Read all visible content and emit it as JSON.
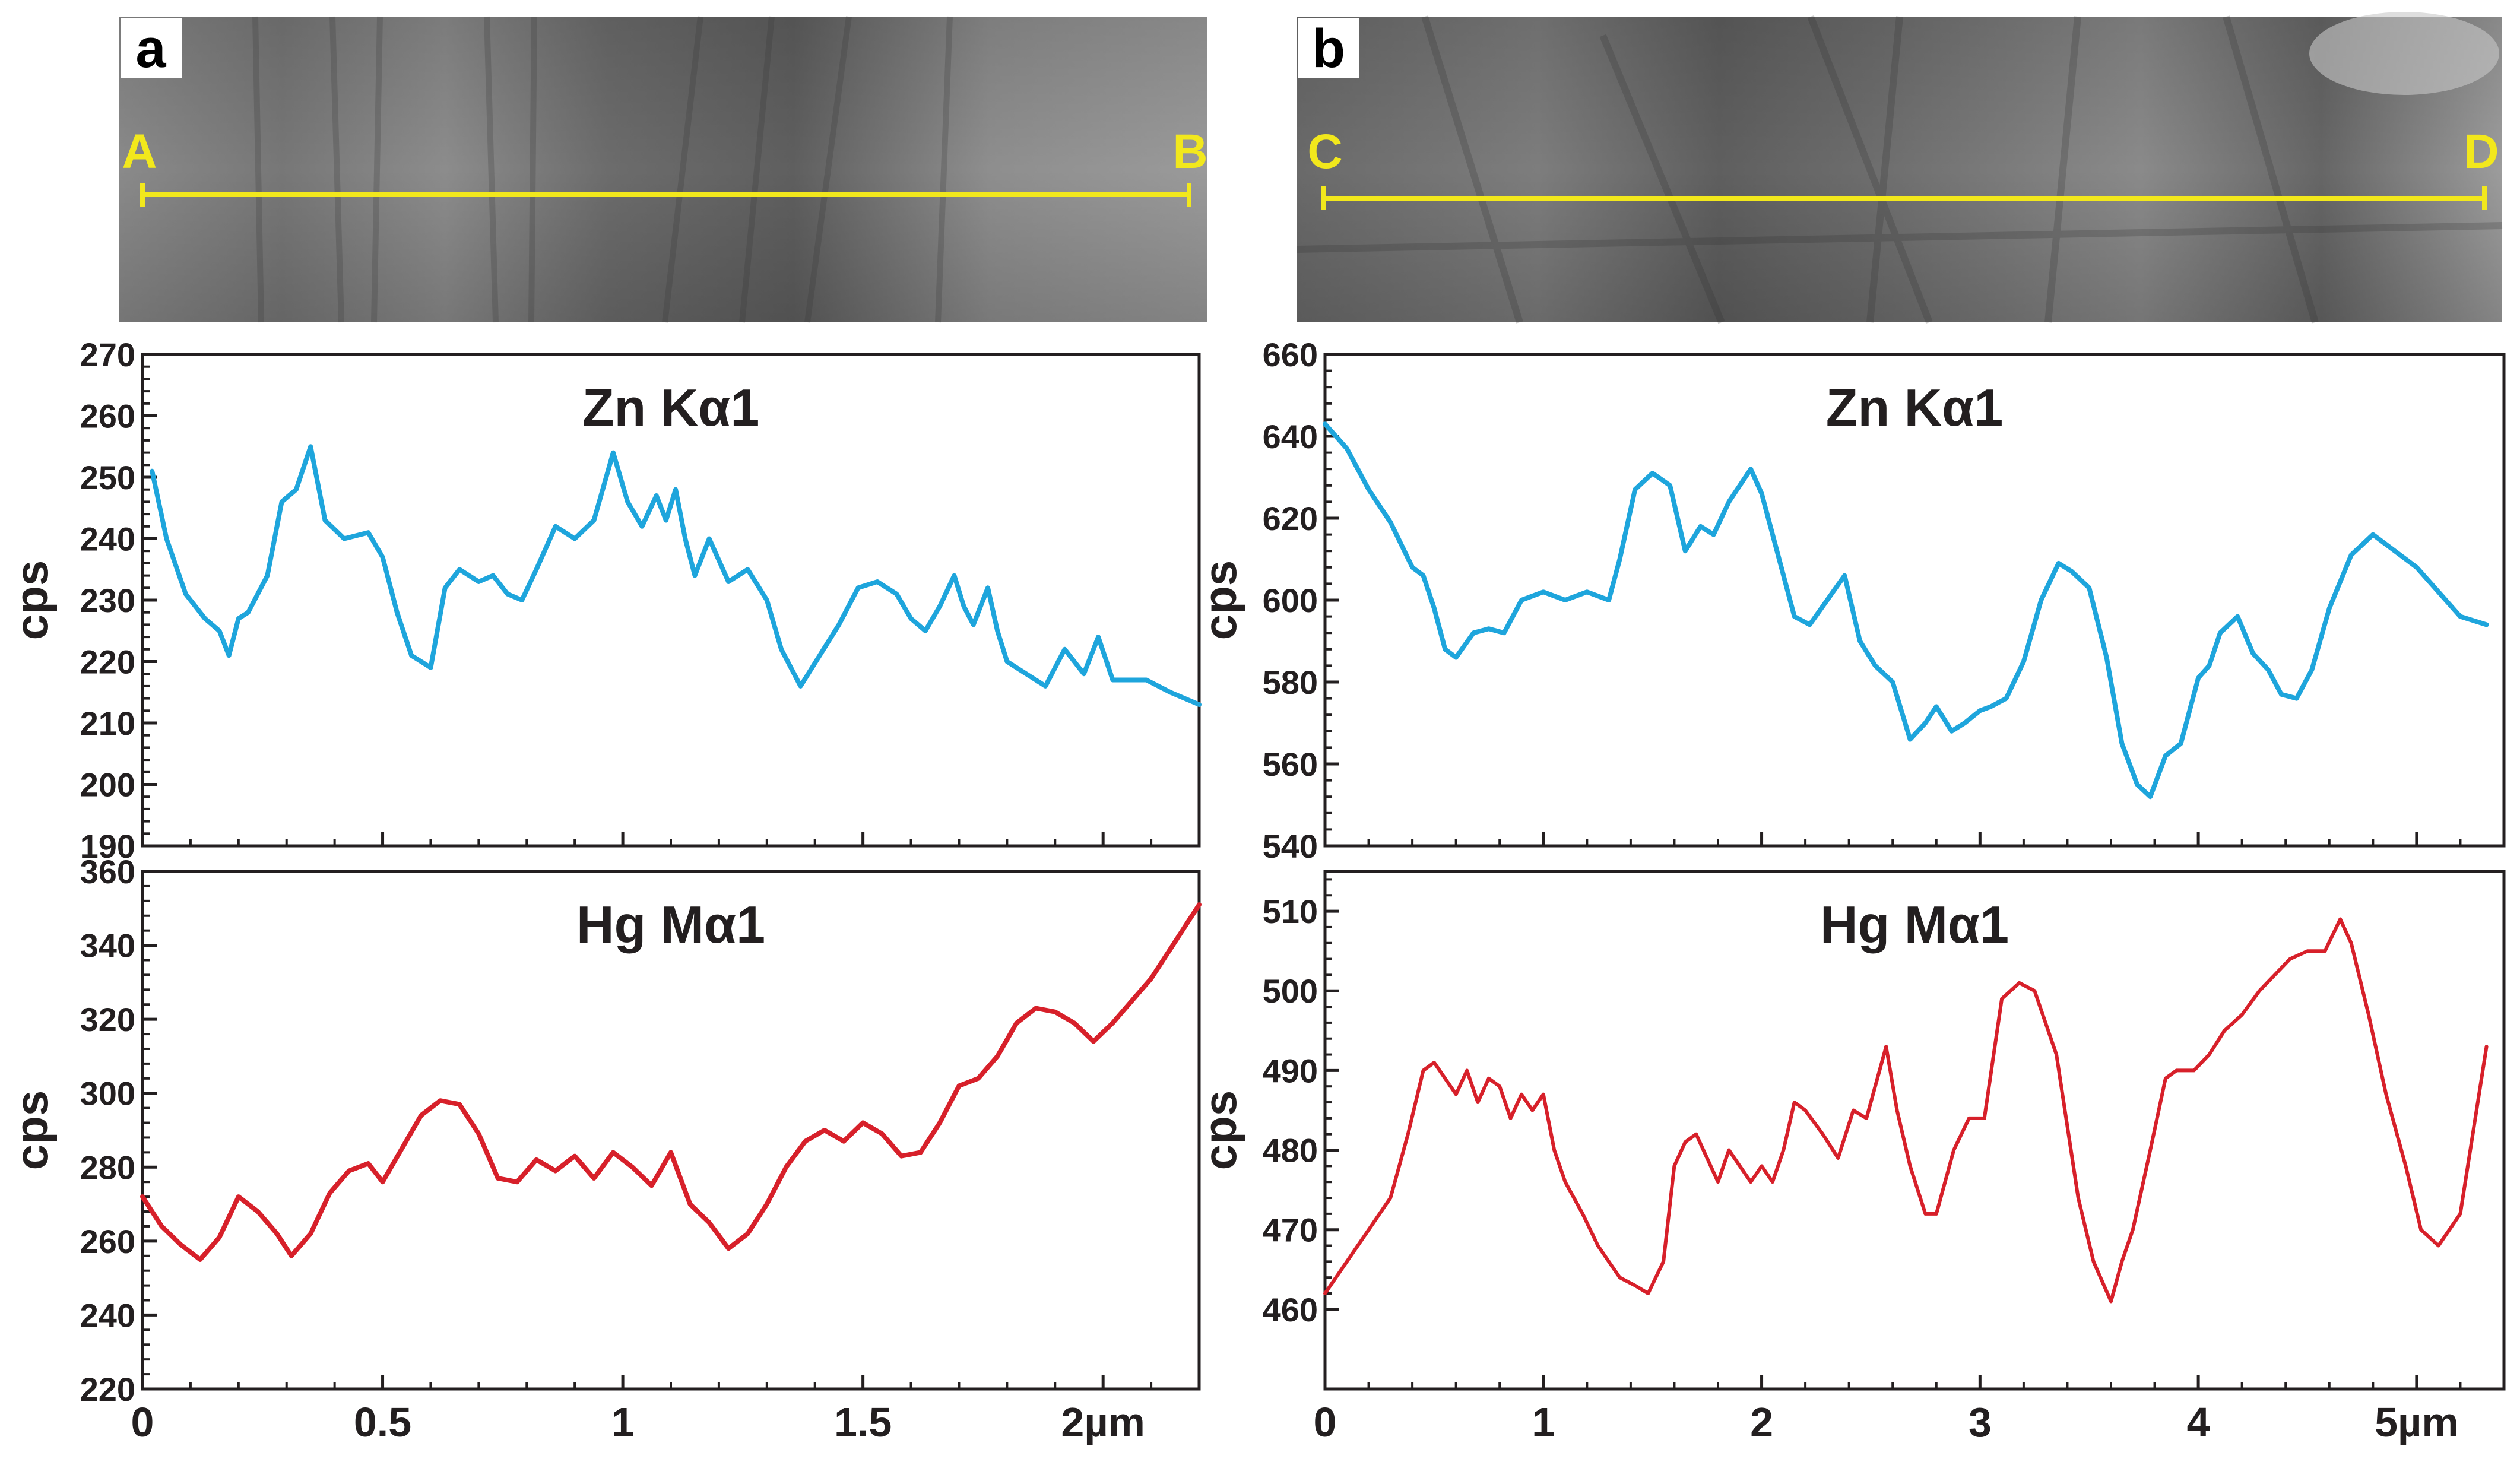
{
  "figure": {
    "panels": [
      {
        "letter": "a",
        "start_label": "A",
        "end_label": "B"
      },
      {
        "letter": "b",
        "start_label": "C",
        "end_label": "D"
      }
    ]
  },
  "colors": {
    "zn_line": "#1ea5dc",
    "hg_line": "#d7202a",
    "scan_line": "#f2e81c",
    "axis": "#231f20"
  },
  "chart_data": [
    {
      "type": "line",
      "panel": "a",
      "title": "Zn Kα1",
      "ylabel": "cps",
      "xlabel": "",
      "xlim": [
        0,
        2.2
      ],
      "ylim": [
        190,
        270
      ],
      "xticks": [
        0,
        0.5,
        1,
        1.5,
        2
      ],
      "xtick_labels": [
        "",
        "",
        "",
        "",
        ""
      ],
      "yticks": [
        190,
        200,
        210,
        220,
        230,
        240,
        250,
        260,
        270
      ],
      "ytick_labels": [
        "190",
        "200",
        "210",
        "220",
        "230",
        "240",
        "250",
        "260",
        "270"
      ],
      "series": [
        {
          "color": "#1ea5dc",
          "x": [
            0.02,
            0.05,
            0.09,
            0.13,
            0.16,
            0.18,
            0.2,
            0.22,
            0.26,
            0.29,
            0.32,
            0.35,
            0.38,
            0.42,
            0.47,
            0.5,
            0.53,
            0.56,
            0.6,
            0.63,
            0.66,
            0.7,
            0.73,
            0.76,
            0.79,
            0.82,
            0.86,
            0.9,
            0.94,
            0.98,
            1.01,
            1.04,
            1.07,
            1.09,
            1.11,
            1.13,
            1.15,
            1.18,
            1.22,
            1.26,
            1.3,
            1.33,
            1.37,
            1.41,
            1.45,
            1.49,
            1.53,
            1.57,
            1.6,
            1.63,
            1.66,
            1.69,
            1.71,
            1.73,
            1.76,
            1.78,
            1.8,
            1.84,
            1.88,
            1.92,
            1.96,
            1.99,
            2.02,
            2.05,
            2.09,
            2.14,
            2.2
          ],
          "y": [
            251,
            240,
            231,
            227,
            225,
            221,
            227,
            228,
            234,
            246,
            248,
            255,
            243,
            240,
            241,
            237,
            228,
            221,
            219,
            232,
            235,
            233,
            234,
            231,
            230,
            235,
            242,
            240,
            243,
            254,
            246,
            242,
            247,
            243,
            248,
            240,
            234,
            240,
            233,
            235,
            230,
            222,
            216,
            221,
            226,
            232,
            233,
            231,
            227,
            225,
            229,
            234,
            229,
            226,
            232,
            225,
            220,
            218,
            216,
            222,
            218,
            224,
            217,
            217,
            217,
            215,
            213
          ]
        }
      ]
    },
    {
      "type": "line",
      "panel": "a",
      "title": "Hg Mα1",
      "ylabel": "cps",
      "xlabel": "",
      "xlim": [
        0,
        2.2
      ],
      "ylim": [
        220,
        360
      ],
      "xticks": [
        0,
        0.5,
        1,
        1.5,
        2
      ],
      "xtick_labels": [
        "0",
        "0.5",
        "1",
        "1.5",
        "2µm"
      ],
      "yticks": [
        220,
        240,
        260,
        280,
        300,
        320,
        340,
        360
      ],
      "ytick_labels": [
        "220",
        "240",
        "260",
        "280",
        "300",
        "320",
        "340",
        "360"
      ],
      "series": [
        {
          "color": "#d7202a",
          "x": [
            0,
            0.04,
            0.08,
            0.12,
            0.16,
            0.2,
            0.24,
            0.28,
            0.31,
            0.35,
            0.39,
            0.43,
            0.47,
            0.5,
            0.54,
            0.58,
            0.62,
            0.66,
            0.7,
            0.74,
            0.78,
            0.82,
            0.86,
            0.9,
            0.94,
            0.98,
            1.02,
            1.06,
            1.1,
            1.14,
            1.18,
            1.22,
            1.26,
            1.3,
            1.34,
            1.38,
            1.42,
            1.46,
            1.5,
            1.54,
            1.58,
            1.62,
            1.66,
            1.7,
            1.74,
            1.78,
            1.82,
            1.86,
            1.9,
            1.94,
            1.98,
            2.02,
            2.06,
            2.1,
            2.14,
            2.2
          ],
          "y": [
            272,
            264,
            259,
            255,
            261,
            272,
            268,
            262,
            256,
            262,
            273,
            279,
            281,
            276,
            285,
            294,
            298,
            297,
            289,
            277,
            276,
            282,
            279,
            283,
            277,
            284,
            280,
            275,
            284,
            270,
            265,
            258,
            262,
            270,
            280,
            287,
            290,
            287,
            292,
            289,
            283,
            284,
            292,
            302,
            304,
            310,
            319,
            323,
            322,
            319,
            314,
            319,
            325,
            331,
            339,
            351
          ]
        }
      ]
    },
    {
      "type": "line",
      "panel": "b",
      "title": "Zn Kα1",
      "ylabel": "cps",
      "xlabel": "",
      "xlim": [
        0,
        5.4
      ],
      "ylim": [
        540,
        660
      ],
      "xticks": [
        0,
        1,
        2,
        3,
        4,
        5
      ],
      "xtick_labels": [
        "",
        "",
        "",
        "",
        "",
        ""
      ],
      "yticks": [
        540,
        560,
        580,
        600,
        620,
        640,
        660
      ],
      "ytick_labels": [
        "540",
        "560",
        "580",
        "600",
        "620",
        "640",
        "660"
      ],
      "series": [
        {
          "color": "#1ea5dc",
          "x": [
            0,
            0.1,
            0.2,
            0.3,
            0.4,
            0.45,
            0.5,
            0.55,
            0.6,
            0.68,
            0.75,
            0.82,
            0.9,
            1.0,
            1.1,
            1.2,
            1.3,
            1.35,
            1.42,
            1.5,
            1.58,
            1.65,
            1.72,
            1.78,
            1.85,
            1.9,
            1.95,
            2.0,
            2.08,
            2.15,
            2.22,
            2.3,
            2.38,
            2.45,
            2.52,
            2.6,
            2.68,
            2.75,
            2.8,
            2.87,
            2.93,
            3.0,
            3.05,
            3.12,
            3.2,
            3.28,
            3.36,
            3.42,
            3.5,
            3.58,
            3.65,
            3.72,
            3.78,
            3.85,
            3.92,
            4.0,
            4.05,
            4.1,
            4.18,
            4.25,
            4.32,
            4.38,
            4.45,
            4.52,
            4.6,
            4.7,
            4.8,
            4.9,
            5.0,
            5.1,
            5.2,
            5.32
          ],
          "y": [
            643,
            637,
            627,
            619,
            608,
            606,
            598,
            588,
            586,
            592,
            593,
            592,
            600,
            602,
            600,
            602,
            600,
            610,
            627,
            631,
            628,
            612,
            618,
            616,
            624,
            628,
            632,
            626,
            610,
            596,
            594,
            600,
            606,
            590,
            584,
            580,
            566,
            570,
            574,
            568,
            570,
            573,
            574,
            576,
            585,
            600,
            609,
            607,
            603,
            586,
            565,
            555,
            552,
            562,
            565,
            581,
            584,
            592,
            596,
            587,
            583,
            577,
            576,
            583,
            598,
            611,
            616,
            612,
            608,
            602,
            596,
            594
          ]
        }
      ]
    },
    {
      "type": "line",
      "panel": "b",
      "title": "Hg Mα1",
      "ylabel": "cps",
      "xlabel": "",
      "xlim": [
        0,
        5.4
      ],
      "ylim": [
        450,
        515
      ],
      "xticks": [
        0,
        1,
        2,
        3,
        4,
        5
      ],
      "xtick_labels": [
        "0",
        "1",
        "2",
        "3",
        "4",
        "5µm"
      ],
      "yticks": [
        460,
        470,
        480,
        490,
        500,
        510
      ],
      "ytick_labels": [
        "460",
        "470",
        "480",
        "490",
        "500",
        "510"
      ],
      "series": [
        {
          "color": "#d7202a",
          "x": [
            0,
            0.1,
            0.2,
            0.3,
            0.38,
            0.45,
            0.5,
            0.55,
            0.6,
            0.65,
            0.7,
            0.75,
            0.8,
            0.85,
            0.9,
            0.95,
            1.0,
            1.05,
            1.1,
            1.18,
            1.25,
            1.3,
            1.35,
            1.42,
            1.48,
            1.55,
            1.6,
            1.65,
            1.7,
            1.75,
            1.8,
            1.85,
            1.9,
            1.95,
            2.0,
            2.05,
            2.1,
            2.15,
            2.2,
            2.28,
            2.35,
            2.42,
            2.48,
            2.53,
            2.57,
            2.62,
            2.68,
            2.75,
            2.8,
            2.88,
            2.95,
            3.02,
            3.1,
            3.18,
            3.25,
            3.35,
            3.45,
            3.52,
            3.6,
            3.65,
            3.7,
            3.78,
            3.85,
            3.9,
            3.98,
            4.05,
            4.12,
            4.2,
            4.28,
            4.35,
            4.42,
            4.5,
            4.58,
            4.65,
            4.7,
            4.78,
            4.86,
            4.95,
            5.02,
            5.1,
            5.2,
            5.32
          ],
          "y": [
            462,
            466,
            470,
            474,
            482,
            490,
            491,
            489,
            487,
            490,
            486,
            489,
            488,
            484,
            487,
            485,
            487,
            480,
            476,
            472,
            468,
            466,
            464,
            463,
            462,
            466,
            478,
            481,
            482,
            479,
            476,
            480,
            478,
            476,
            478,
            476,
            480,
            486,
            485,
            482,
            479,
            485,
            484,
            489,
            493,
            485,
            478,
            472,
            472,
            480,
            484,
            484,
            499,
            501,
            500,
            492,
            474,
            466,
            461,
            466,
            470,
            480,
            489,
            490,
            490,
            492,
            495,
            497,
            500,
            502,
            504,
            505,
            505,
            509,
            506,
            497,
            487,
            478,
            470,
            468,
            472,
            493
          ]
        }
      ]
    }
  ]
}
